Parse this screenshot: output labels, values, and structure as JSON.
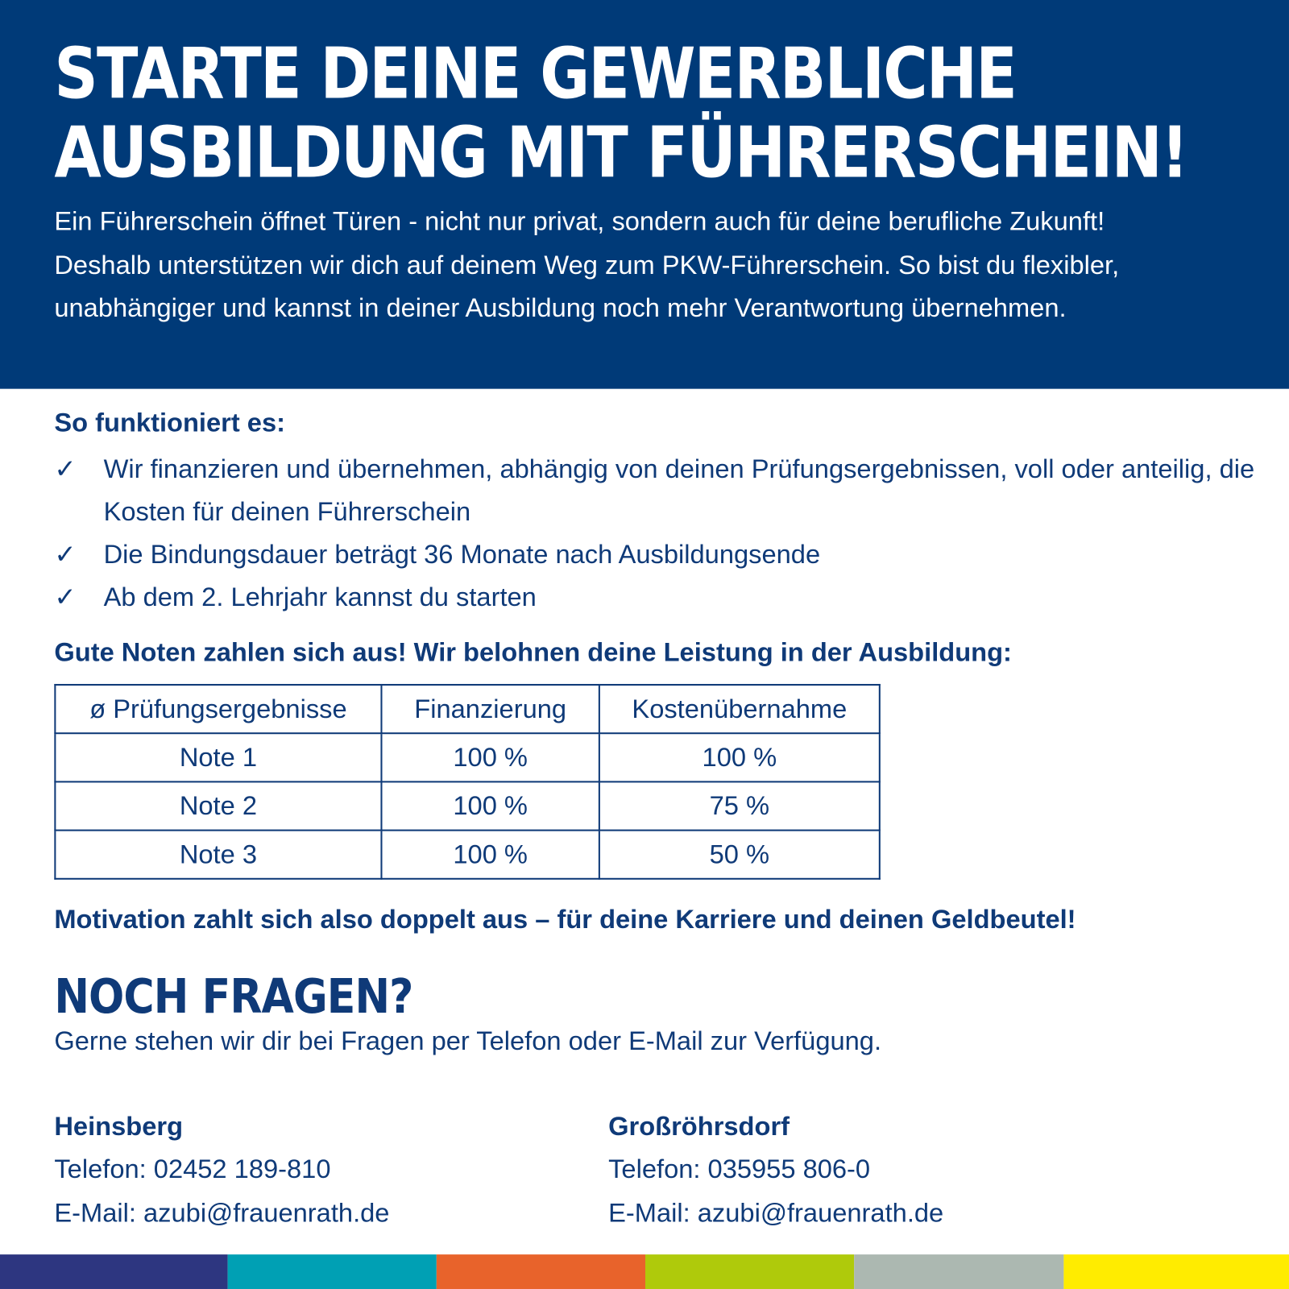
{
  "header": {
    "title_line1": "Starte deine gewerbliche",
    "title_line2": "Ausbildung mit Führerschein!",
    "intro": "Ein Führerschein öffnet Türen - nicht nur privat, sondern auch für deine berufliche Zukunft! Deshalb unterstützen wir dich auf deinem Weg zum PKW-Führerschein. So bist du flexibler, unabhängiger und kannst in deiner Ausbildung noch mehr Verantwortung übernehmen."
  },
  "how": {
    "heading": "So funktioniert es:",
    "check": "✓",
    "items": [
      "Wir finanzieren und übernehmen, abhängig von deinen Prüfungsergebnissen, voll oder anteilig, die Kosten für deinen Führerschein",
      "Die Bindungsdauer beträgt 36 Monate nach Ausbildungsende",
      "Ab dem 2. Lehrjahr kannst du starten"
    ]
  },
  "grades": {
    "heading": "Gute Noten zahlen sich aus! Wir belohnen deine Leistung in der Ausbildung:",
    "columns": [
      "ø Prüfungsergebnisse",
      "Finanzierung",
      "Kostenübernahme"
    ],
    "rows": [
      [
        "Note 1",
        "100 %",
        "100 %"
      ],
      [
        "Note 2",
        "100 %",
        "75 %"
      ],
      [
        "Note 3",
        "100 %",
        "50 %"
      ]
    ],
    "footer": "Motivation zahlt sich also doppelt aus – für deine Karriere und deinen Geldbeutel!"
  },
  "contact": {
    "heading": "Noch Fragen?",
    "text": "Gerne stehen wir dir bei Fragen per Telefon oder E-Mail zur Verfügung.",
    "locations": [
      {
        "name": "Heinsberg",
        "phone": "Telefon: 02452 189-810",
        "email": "E-Mail: azubi@frauenrath.de"
      },
      {
        "name": "Großröhrsdorf",
        "phone": "Telefon: 035955 806-0",
        "email": "E-Mail: azubi@frauenrath.de"
      }
    ]
  },
  "colors": {
    "header": "#003a78",
    "text": "#0f3a78",
    "stripe": [
      "#2d3680",
      "#00a0b4",
      "#e8632b",
      "#afca0b",
      "#acb8b1",
      "#ffec00"
    ]
  }
}
